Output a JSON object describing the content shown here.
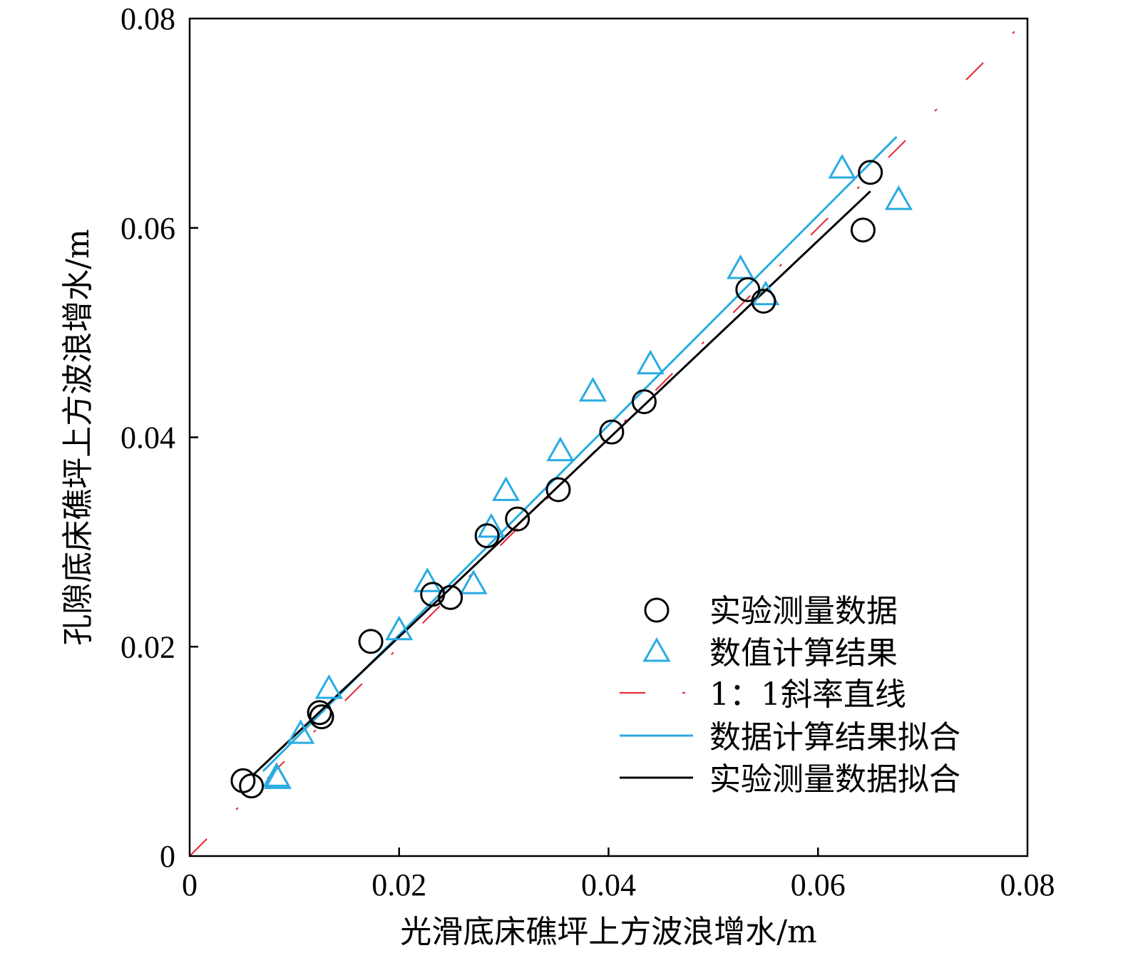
{
  "chart_data": {
    "type": "scatter",
    "xlabel": "光滑底床礁坪上方波浪增水/m",
    "ylabel": "孔隙底床礁坪上方波浪增水/m",
    "xlim": [
      0,
      0.08
    ],
    "ylim": [
      0,
      0.08
    ],
    "x_ticks": [
      "0",
      "0.02",
      "0.04",
      "0.06",
      "0.08"
    ],
    "y_ticks": [
      "0",
      "0.02",
      "0.04",
      "0.06",
      "0.08"
    ],
    "grid": false,
    "legend_position": "bottom-right",
    "colors": {
      "experiment": "#000000",
      "numerical": "#29abe2",
      "reference": "#e8202a"
    },
    "series": [
      {
        "name": "实验测量数据",
        "kind": "scatter",
        "marker": "circle",
        "points": [
          [
            0.0051,
            0.0072
          ],
          [
            0.0059,
            0.0067
          ],
          [
            0.0124,
            0.0137
          ],
          [
            0.0126,
            0.0133
          ],
          [
            0.0173,
            0.0205
          ],
          [
            0.0232,
            0.025
          ],
          [
            0.0249,
            0.0247
          ],
          [
            0.0284,
            0.0306
          ],
          [
            0.0313,
            0.0322
          ],
          [
            0.0352,
            0.035
          ],
          [
            0.0403,
            0.0405
          ],
          [
            0.0434,
            0.0434
          ],
          [
            0.0533,
            0.0541
          ],
          [
            0.0548,
            0.053
          ],
          [
            0.0643,
            0.0598
          ],
          [
            0.065,
            0.0653
          ]
        ]
      },
      {
        "name": "数值计算结果",
        "kind": "scatter",
        "marker": "triangle",
        "points": [
          [
            0.0083,
            0.0076
          ],
          [
            0.0084,
            0.0074
          ],
          [
            0.0106,
            0.0117
          ],
          [
            0.0133,
            0.016
          ],
          [
            0.02,
            0.0216
          ],
          [
            0.0227,
            0.0262
          ],
          [
            0.0271,
            0.026
          ],
          [
            0.0288,
            0.0314
          ],
          [
            0.0302,
            0.0349
          ],
          [
            0.0354,
            0.0387
          ],
          [
            0.0385,
            0.0444
          ],
          [
            0.044,
            0.047
          ],
          [
            0.0526,
            0.0561
          ],
          [
            0.055,
            0.0536
          ],
          [
            0.0623,
            0.0657
          ],
          [
            0.0677,
            0.0627
          ]
        ]
      },
      {
        "name": "1：1斜率直线",
        "kind": "line",
        "style": "dashdot",
        "points": [
          [
            0,
            0
          ],
          [
            0.08,
            0.08
          ]
        ]
      },
      {
        "name": "数据计算结果拟合",
        "kind": "line",
        "style": "solid",
        "points": [
          [
            0.007,
            0.0081
          ],
          [
            0.0675,
            0.0687
          ]
        ]
      },
      {
        "name": "实验测量数据拟合",
        "kind": "line",
        "style": "solid",
        "points": [
          [
            0.006,
            0.0077
          ],
          [
            0.065,
            0.0635
          ]
        ]
      }
    ]
  }
}
